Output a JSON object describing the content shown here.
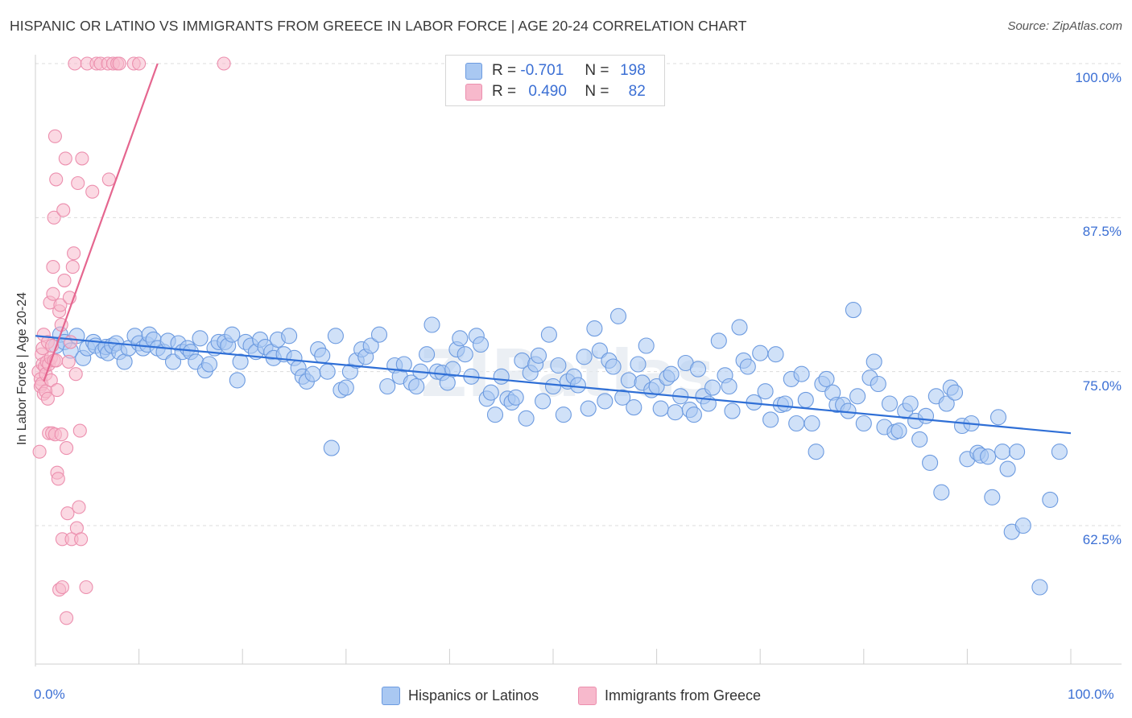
{
  "title": "HISPANIC OR LATINO VS IMMIGRANTS FROM GREECE IN LABOR FORCE | AGE 20-24 CORRELATION CHART",
  "source": "Source: ZipAtlas.com",
  "colors": {
    "blue_fill": "#a9c8f2",
    "blue_stroke": "#6d9be0",
    "blue_line": "#2f6fd6",
    "pink_fill": "#f7b9cc",
    "pink_stroke": "#ec8fae",
    "pink_line": "#e5668f",
    "tick_text": "#3b6fd4",
    "grid": "#dcdcdc"
  },
  "legend": {
    "r_label": "R =",
    "n_label": "N =",
    "blue": {
      "r": "-0.701",
      "n": "198"
    },
    "pink": {
      "r": "0.490",
      "n": "82"
    }
  },
  "x_axis": {
    "min_label": "0.0%",
    "max_label": "100.0%"
  },
  "y_axis_label": "In Labor Force | Age 20-24",
  "chart_data": {
    "type": "scatter",
    "title": "HISPANIC OR LATINO VS IMMIGRANTS FROM GREECE IN LABOR FORCE | AGE 20-24 CORRELATION CHART",
    "xlabel": "",
    "ylabel": "In Labor Force | Age 20-24",
    "xlim": [
      0,
      100
    ],
    "ylim": [
      52,
      102
    ],
    "yticks": [
      62.5,
      75.0,
      87.5,
      100.0
    ],
    "ytick_labels": [
      "62.5%",
      "75.0%",
      "87.5%",
      "100.0%"
    ],
    "series": [
      {
        "name": "Hispanics or Latinos",
        "color": "#a9c8f2",
        "trend": {
          "x": [
            0,
            100
          ],
          "y": [
            77.9,
            70.0
          ]
        },
        "points": [
          [
            2.0,
            77.1
          ],
          [
            2.4,
            78.0
          ],
          [
            2.8,
            77.4
          ],
          [
            3.4,
            76.7
          ],
          [
            4.0,
            77.9
          ],
          [
            4.6,
            76.1
          ],
          [
            5.0,
            76.9
          ],
          [
            5.6,
            77.4
          ],
          [
            5.8,
            77.1
          ],
          [
            6.5,
            76.7
          ],
          [
            6.8,
            77.0
          ],
          [
            7.0,
            76.5
          ],
          [
            7.4,
            77.1
          ],
          [
            7.8,
            77.3
          ],
          [
            8.1,
            76.6
          ],
          [
            8.6,
            75.8
          ],
          [
            9.0,
            76.9
          ],
          [
            9.6,
            77.9
          ],
          [
            10.0,
            77.3
          ],
          [
            10.4,
            76.9
          ],
          [
            10.8,
            77.2
          ],
          [
            11.0,
            78.0
          ],
          [
            11.4,
            77.6
          ],
          [
            11.8,
            76.9
          ],
          [
            12.4,
            76.6
          ],
          [
            12.8,
            77.5
          ],
          [
            13.3,
            75.8
          ],
          [
            13.8,
            77.3
          ],
          [
            14.2,
            76.6
          ],
          [
            14.7,
            76.9
          ],
          [
            15.0,
            76.6
          ],
          [
            15.5,
            75.8
          ],
          [
            15.9,
            77.7
          ],
          [
            16.4,
            75.1
          ],
          [
            16.8,
            75.6
          ],
          [
            17.3,
            76.9
          ],
          [
            17.7,
            77.4
          ],
          [
            18.3,
            77.4
          ],
          [
            18.6,
            77.1
          ],
          [
            19.0,
            78.0
          ],
          [
            19.5,
            74.3
          ],
          [
            19.8,
            75.8
          ],
          [
            20.3,
            77.4
          ],
          [
            20.8,
            77.1
          ],
          [
            21.3,
            76.6
          ],
          [
            21.7,
            77.6
          ],
          [
            22.2,
            77.0
          ],
          [
            22.8,
            76.6
          ],
          [
            23.0,
            76.1
          ],
          [
            23.4,
            77.6
          ],
          [
            24.0,
            76.4
          ],
          [
            24.5,
            77.9
          ],
          [
            25.0,
            76.1
          ],
          [
            25.4,
            75.3
          ],
          [
            25.8,
            74.6
          ],
          [
            26.2,
            74.2
          ],
          [
            26.8,
            74.8
          ],
          [
            27.3,
            76.8
          ],
          [
            27.7,
            76.3
          ],
          [
            28.2,
            75.0
          ],
          [
            28.6,
            68.8
          ],
          [
            29.0,
            77.9
          ],
          [
            29.5,
            73.5
          ],
          [
            30.0,
            73.7
          ],
          [
            30.4,
            75.0
          ],
          [
            31.0,
            75.9
          ],
          [
            31.5,
            76.8
          ],
          [
            31.9,
            76.2
          ],
          [
            32.4,
            77.1
          ],
          [
            33.2,
            78.0
          ],
          [
            34.0,
            73.8
          ],
          [
            34.7,
            75.5
          ],
          [
            35.2,
            74.6
          ],
          [
            35.6,
            75.6
          ],
          [
            36.3,
            74.1
          ],
          [
            36.8,
            73.8
          ],
          [
            37.2,
            75.0
          ],
          [
            37.8,
            76.4
          ],
          [
            38.3,
            78.8
          ],
          [
            38.8,
            75.0
          ],
          [
            39.3,
            74.9
          ],
          [
            39.8,
            74.1
          ],
          [
            40.3,
            75.2
          ],
          [
            40.7,
            76.8
          ],
          [
            41.0,
            77.7
          ],
          [
            41.5,
            76.4
          ],
          [
            42.1,
            74.6
          ],
          [
            42.6,
            77.9
          ],
          [
            43.0,
            77.2
          ],
          [
            43.6,
            72.8
          ],
          [
            44.0,
            73.3
          ],
          [
            44.4,
            71.5
          ],
          [
            45.0,
            74.6
          ],
          [
            45.6,
            72.8
          ],
          [
            46.0,
            72.5
          ],
          [
            46.4,
            72.9
          ],
          [
            47.0,
            75.9
          ],
          [
            47.4,
            71.2
          ],
          [
            47.8,
            74.9
          ],
          [
            48.3,
            75.6
          ],
          [
            48.6,
            76.3
          ],
          [
            49.0,
            72.6
          ],
          [
            49.6,
            78.0
          ],
          [
            50.0,
            73.8
          ],
          [
            50.5,
            75.5
          ],
          [
            51.0,
            71.5
          ],
          [
            51.4,
            74.2
          ],
          [
            52.0,
            74.6
          ],
          [
            52.4,
            73.9
          ],
          [
            53.0,
            76.2
          ],
          [
            53.4,
            72.0
          ],
          [
            54.0,
            78.5
          ],
          [
            54.5,
            76.7
          ],
          [
            55.0,
            72.6
          ],
          [
            55.4,
            75.9
          ],
          [
            55.8,
            75.4
          ],
          [
            56.3,
            79.5
          ],
          [
            56.7,
            72.9
          ],
          [
            57.3,
            74.3
          ],
          [
            57.8,
            72.1
          ],
          [
            58.2,
            75.6
          ],
          [
            58.6,
            74.1
          ],
          [
            59.0,
            77.1
          ],
          [
            59.5,
            73.5
          ],
          [
            60.0,
            73.8
          ],
          [
            60.4,
            72.0
          ],
          [
            61.0,
            74.5
          ],
          [
            61.4,
            74.8
          ],
          [
            61.8,
            71.7
          ],
          [
            62.3,
            73.0
          ],
          [
            62.8,
            75.7
          ],
          [
            63.2,
            71.9
          ],
          [
            63.6,
            71.5
          ],
          [
            64.0,
            75.2
          ],
          [
            64.5,
            73.0
          ],
          [
            65.0,
            72.4
          ],
          [
            65.4,
            73.7
          ],
          [
            66.0,
            77.5
          ],
          [
            66.6,
            74.7
          ],
          [
            67.0,
            73.8
          ],
          [
            67.3,
            71.8
          ],
          [
            68.0,
            78.6
          ],
          [
            68.4,
            75.9
          ],
          [
            68.8,
            75.4
          ],
          [
            69.4,
            72.5
          ],
          [
            70.0,
            76.5
          ],
          [
            70.5,
            73.4
          ],
          [
            71.0,
            71.1
          ],
          [
            71.5,
            76.4
          ],
          [
            72.0,
            72.3
          ],
          [
            72.4,
            72.4
          ],
          [
            73.0,
            74.4
          ],
          [
            73.5,
            70.8
          ],
          [
            74.0,
            74.8
          ],
          [
            74.4,
            72.7
          ],
          [
            75.0,
            70.8
          ],
          [
            75.4,
            68.5
          ],
          [
            76.0,
            74.0
          ],
          [
            76.4,
            74.4
          ],
          [
            77.0,
            73.3
          ],
          [
            77.4,
            72.3
          ],
          [
            78.0,
            72.3
          ],
          [
            78.5,
            71.8
          ],
          [
            79.0,
            80.0
          ],
          [
            79.4,
            73.0
          ],
          [
            80.0,
            70.8
          ],
          [
            80.6,
            74.5
          ],
          [
            81.0,
            75.8
          ],
          [
            81.4,
            74.0
          ],
          [
            82.0,
            70.5
          ],
          [
            82.5,
            72.4
          ],
          [
            83.0,
            70.1
          ],
          [
            83.4,
            70.2
          ],
          [
            84.0,
            71.8
          ],
          [
            84.5,
            72.4
          ],
          [
            85.0,
            71.0
          ],
          [
            85.4,
            69.5
          ],
          [
            86.0,
            71.4
          ],
          [
            86.4,
            67.6
          ],
          [
            87.0,
            73.0
          ],
          [
            87.5,
            65.2
          ],
          [
            88.0,
            72.4
          ],
          [
            88.4,
            73.7
          ],
          [
            88.8,
            73.3
          ],
          [
            89.5,
            70.6
          ],
          [
            90.0,
            67.9
          ],
          [
            90.4,
            70.8
          ],
          [
            91.0,
            68.4
          ],
          [
            91.3,
            68.2
          ],
          [
            92.0,
            68.1
          ],
          [
            92.4,
            64.8
          ],
          [
            93.0,
            71.3
          ],
          [
            93.4,
            68.5
          ],
          [
            93.9,
            67.1
          ],
          [
            94.3,
            62.0
          ],
          [
            94.8,
            68.5
          ],
          [
            95.4,
            62.5
          ],
          [
            97.0,
            57.5
          ],
          [
            98.0,
            64.6
          ],
          [
            98.9,
            68.5
          ]
        ]
      },
      {
        "name": "Immigrants from Greece",
        "color": "#f7b9cc",
        "trend": {
          "x": [
            0.8,
            11.8
          ],
          "y": [
            74.2,
            100.0
          ]
        },
        "points": [
          [
            0.3,
            75.0
          ],
          [
            0.4,
            68.5
          ],
          [
            0.5,
            74.4
          ],
          [
            0.5,
            73.8
          ],
          [
            0.6,
            76.4
          ],
          [
            0.6,
            74.0
          ],
          [
            0.7,
            75.6
          ],
          [
            0.7,
            76.9
          ],
          [
            0.8,
            73.2
          ],
          [
            0.8,
            78.0
          ],
          [
            0.9,
            75.4
          ],
          [
            1.0,
            73.4
          ],
          [
            1.0,
            74.8
          ],
          [
            1.1,
            75.8
          ],
          [
            1.2,
            77.4
          ],
          [
            1.2,
            72.8
          ],
          [
            1.3,
            70.0
          ],
          [
            1.3,
            75.6
          ],
          [
            1.4,
            80.6
          ],
          [
            1.5,
            76.1
          ],
          [
            1.5,
            74.3
          ],
          [
            1.6,
            77.1
          ],
          [
            1.6,
            70.0
          ],
          [
            1.7,
            81.3
          ],
          [
            1.7,
            83.5
          ],
          [
            1.8,
            87.5
          ],
          [
            1.8,
            75.9
          ],
          [
            1.9,
            94.1
          ],
          [
            1.9,
            69.9
          ],
          [
            2.0,
            75.9
          ],
          [
            2.0,
            90.6
          ],
          [
            2.1,
            73.5
          ],
          [
            2.1,
            66.8
          ],
          [
            2.2,
            66.3
          ],
          [
            2.3,
            57.3
          ],
          [
            2.3,
            79.9
          ],
          [
            2.4,
            80.4
          ],
          [
            2.5,
            69.9
          ],
          [
            2.5,
            78.8
          ],
          [
            2.6,
            57.5
          ],
          [
            2.6,
            61.4
          ],
          [
            2.7,
            88.1
          ],
          [
            2.8,
            82.4
          ],
          [
            2.9,
            92.3
          ],
          [
            3.0,
            55.0
          ],
          [
            3.0,
            68.8
          ],
          [
            3.1,
            63.5
          ],
          [
            3.2,
            75.8
          ],
          [
            3.3,
            81.0
          ],
          [
            3.4,
            77.4
          ],
          [
            3.5,
            61.4
          ],
          [
            3.6,
            83.5
          ],
          [
            3.7,
            84.6
          ],
          [
            3.8,
            100.0
          ],
          [
            3.9,
            74.8
          ],
          [
            4.0,
            62.3
          ],
          [
            4.1,
            90.3
          ],
          [
            4.2,
            64.0
          ],
          [
            4.3,
            70.2
          ],
          [
            4.4,
            61.4
          ],
          [
            4.5,
            92.3
          ],
          [
            4.9,
            57.5
          ],
          [
            5.0,
            100.0
          ],
          [
            5.5,
            89.6
          ],
          [
            5.9,
            100.0
          ],
          [
            6.3,
            100.0
          ],
          [
            7.0,
            100.0
          ],
          [
            7.1,
            90.6
          ],
          [
            7.5,
            100.0
          ],
          [
            7.9,
            100.0
          ],
          [
            8.1,
            100.0
          ],
          [
            9.5,
            100.0
          ],
          [
            10.0,
            100.0
          ],
          [
            18.2,
            100.0
          ]
        ]
      }
    ]
  },
  "bottom_legend": {
    "blue_label": "Hispanics or Latinos",
    "pink_label": "Immigrants from Greece"
  },
  "watermark": "ZIPatlas"
}
